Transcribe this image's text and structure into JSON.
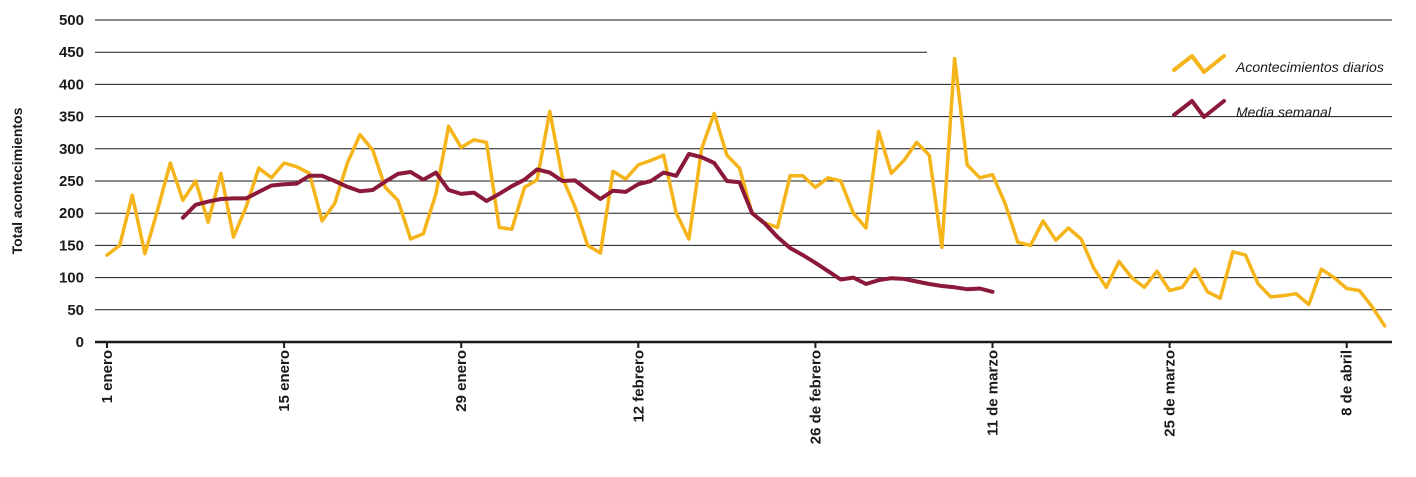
{
  "chart_data": {
    "type": "line",
    "title": "",
    "xlabel": "",
    "ylabel": "Total acontecimientos",
    "ylim": [
      0,
      500
    ],
    "yticks": [
      0,
      50,
      100,
      150,
      200,
      250,
      300,
      350,
      400,
      450,
      500
    ],
    "grid": true,
    "legend_position": "top-right",
    "x_tick_labels": [
      "1 enero",
      "15 enero",
      "29 enero",
      "12 febrero",
      "26 de febrero",
      "11 de marzo",
      "25 de marzo",
      "8 de abril"
    ],
    "x_tick_days": [
      0,
      14,
      28,
      42,
      56,
      70,
      84,
      98
    ],
    "colors": {
      "daily": "#f5b41a",
      "weekly": "#8b1a3a",
      "grid": "#1a1a1a",
      "axis": "#1a1a1a"
    },
    "series": [
      {
        "name": "Acontecimientos diarios",
        "start_day": 0,
        "values": [
          135,
          150,
          228,
          137,
          205,
          278,
          220,
          250,
          186,
          262,
          163,
          210,
          270,
          255,
          278,
          272,
          262,
          188,
          215,
          278,
          322,
          298,
          240,
          220,
          160,
          168,
          230,
          335,
          302,
          314,
          310,
          178,
          175,
          240,
          252,
          358,
          255,
          210,
          150,
          138,
          265,
          253,
          275,
          282,
          290,
          200,
          160,
          300,
          355,
          290,
          270,
          200,
          185,
          178,
          258,
          258,
          240,
          255,
          250,
          200,
          177,
          327,
          262,
          282,
          310,
          290,
          147,
          440,
          275,
          255,
          260,
          215,
          155,
          150,
          188,
          158,
          177,
          160,
          115,
          85,
          125,
          100,
          85,
          110,
          80,
          85,
          113,
          78,
          68,
          140,
          135,
          90,
          70,
          72,
          75,
          58,
          113,
          100,
          83,
          80,
          55,
          25
        ]
      },
      {
        "name": "Media semanal",
        "start_day": 6,
        "values": [
          193,
          213,
          218,
          222,
          223,
          223,
          233,
          243,
          245,
          246,
          258,
          258,
          250,
          241,
          234,
          236,
          249,
          261,
          264,
          252,
          263,
          236,
          230,
          232,
          219,
          230,
          242,
          252,
          268,
          263,
          250,
          251,
          236,
          222,
          235,
          233,
          245,
          250,
          263,
          258,
          292,
          287,
          278,
          250,
          248,
          200,
          184,
          163,
          146,
          135,
          123,
          110,
          97,
          100,
          90,
          96,
          99,
          98,
          94,
          90,
          87,
          85,
          82,
          83,
          78
        ]
      }
    ]
  }
}
